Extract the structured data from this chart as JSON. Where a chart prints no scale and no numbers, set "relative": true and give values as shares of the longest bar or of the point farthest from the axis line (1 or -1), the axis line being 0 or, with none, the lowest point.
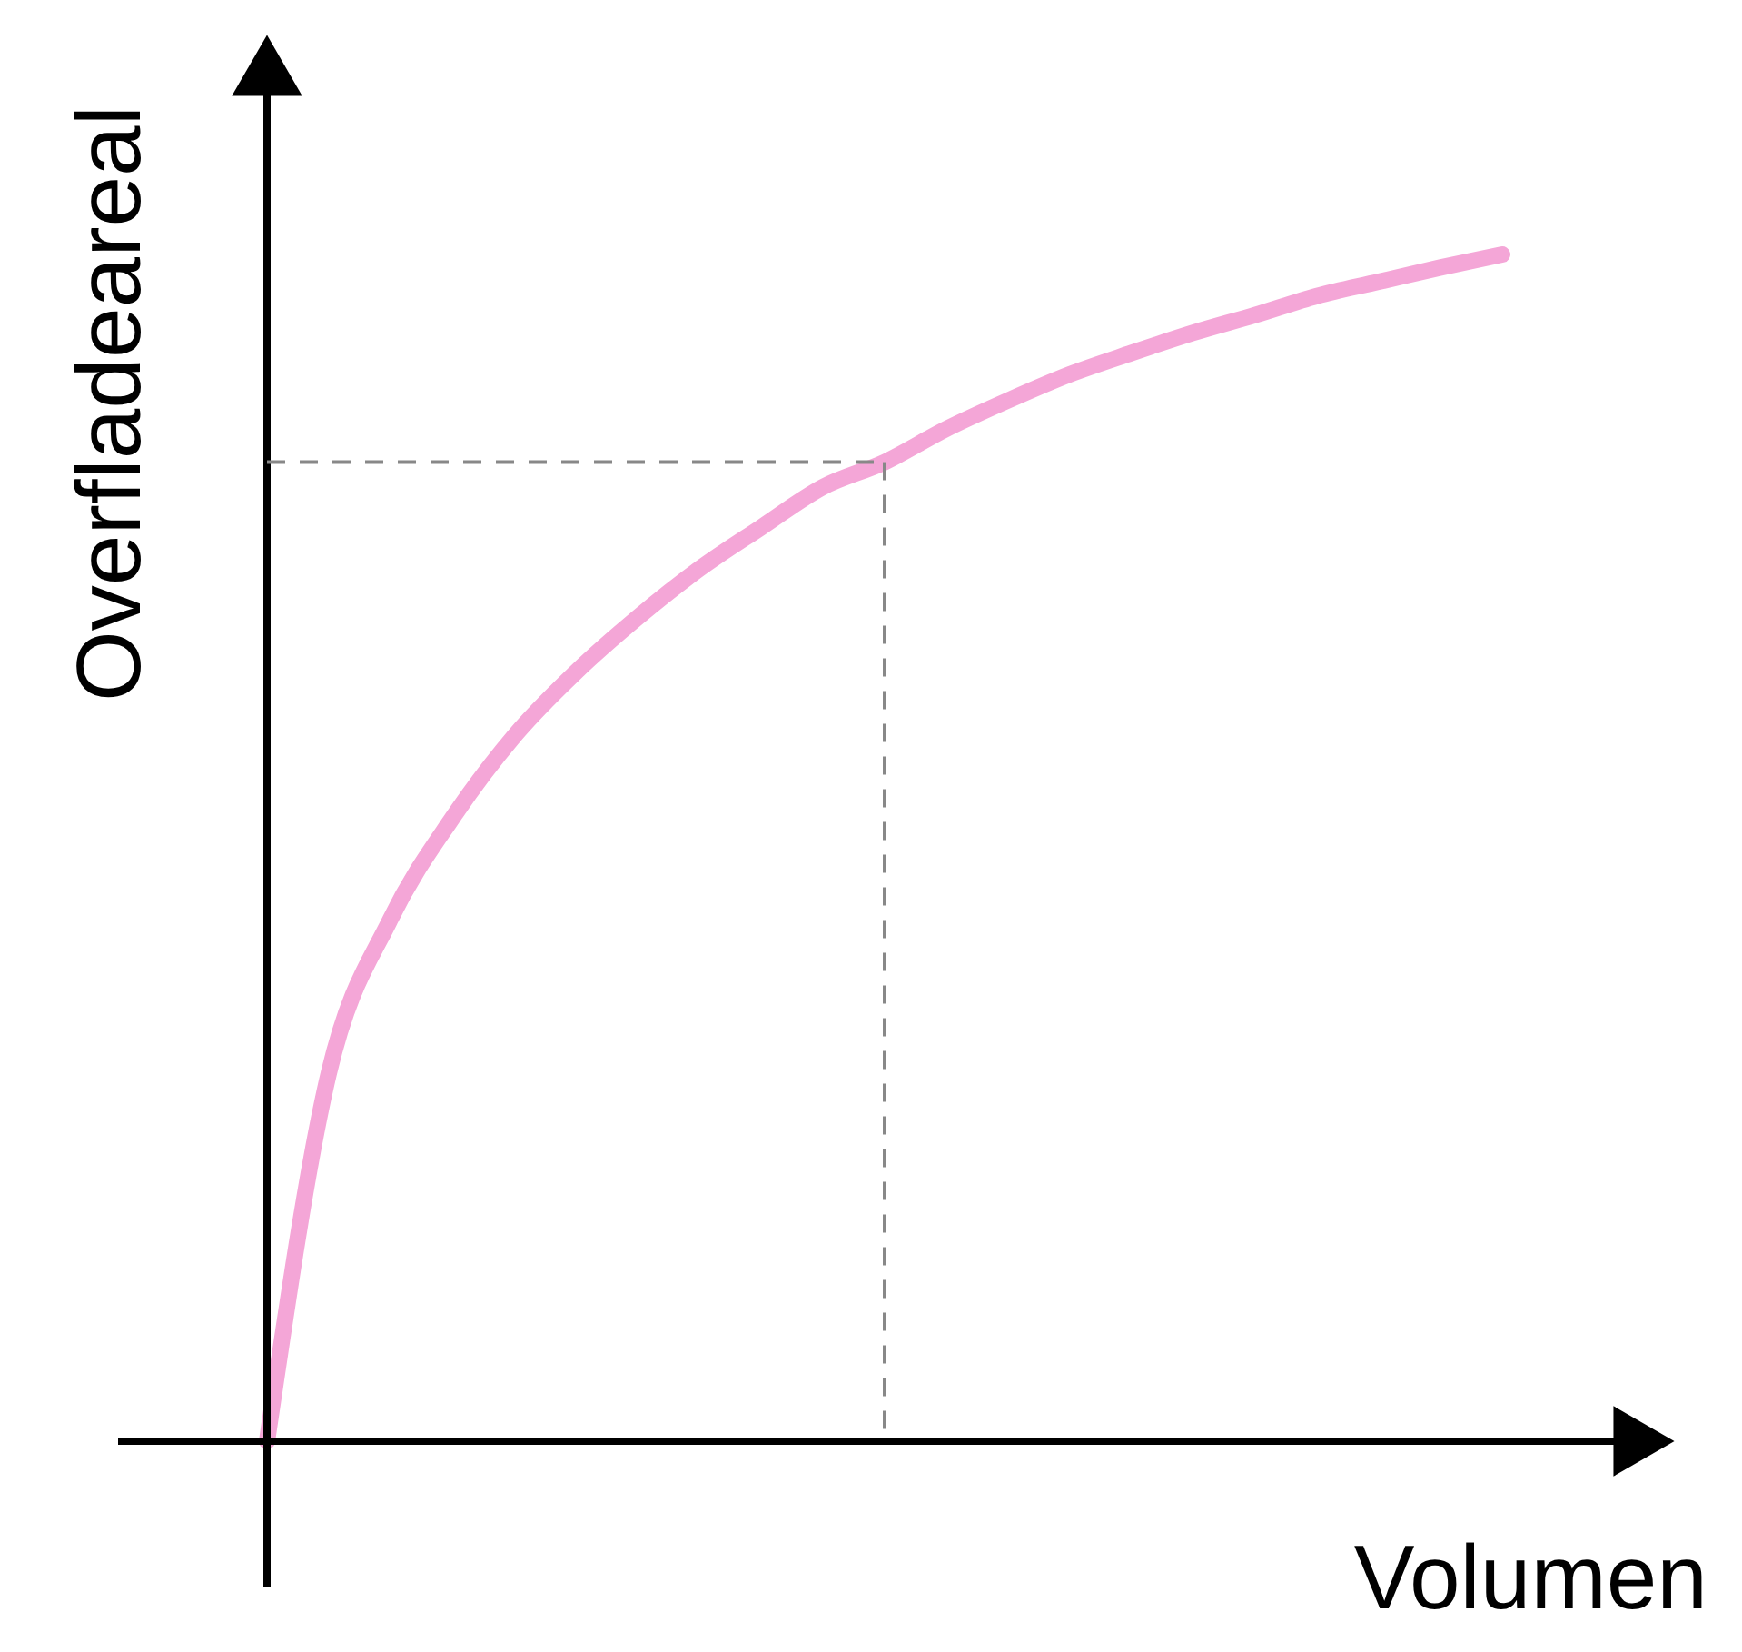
{
  "chart_data": {
    "type": "line",
    "relative": true,
    "xlabel": "Volumen",
    "ylabel": "Overfladeareal",
    "categories": [
      null,
      null,
      null,
      null,
      null,
      null,
      null,
      null,
      null,
      null,
      null,
      null,
      null,
      null,
      null,
      null,
      null,
      null,
      null,
      null,
      null
    ],
    "series": [
      {
        "color": "#f4a6d7",
        "values": [
          0,
          0.31,
          0.44,
          0.525,
          0.594,
          0.648,
          0.694,
          0.735,
          0.77,
          0.804,
          0.825,
          0.853,
          0.877,
          0.899,
          0.917,
          0.934,
          0.949,
          0.965,
          0.977,
          0.989,
          1.0
        ]
      }
    ],
    "ref_lines": [
      {
        "axis": "y",
        "value": 0.825,
        "color": "#888888",
        "line_style": "dashed"
      }
    ]
  }
}
